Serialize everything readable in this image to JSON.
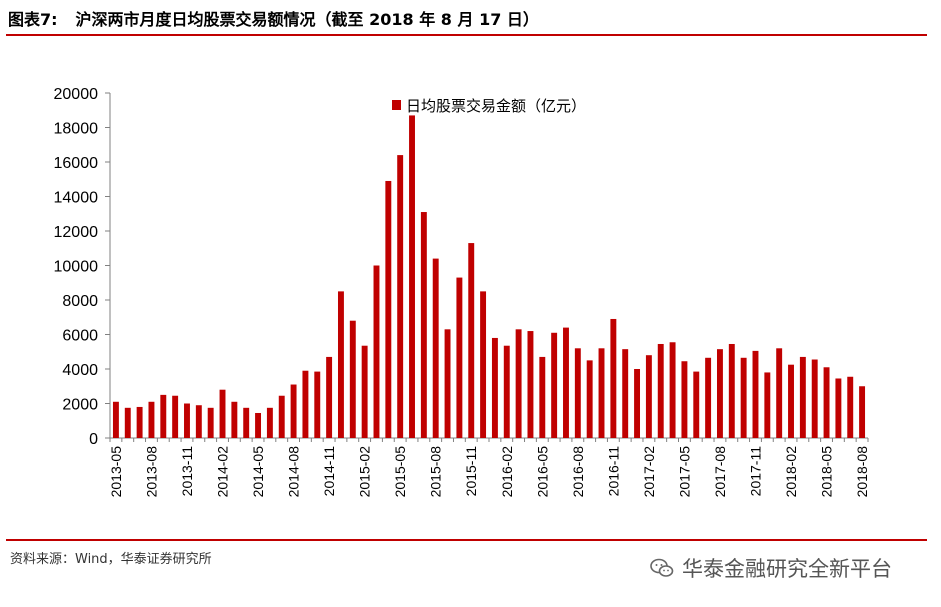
{
  "figure": {
    "label": "图表7:",
    "title": "沪深两市月度日均股票交易额情况（截至 2018 年 8 月 17 日）"
  },
  "source": "资料来源：Wind，华泰证券研究所",
  "watermark": "华泰金融研究全新平台",
  "colors": {
    "bar": "#c00000",
    "rule": "#c00000"
  },
  "icons": {
    "watermark_logo": "wechat-icon"
  },
  "chart_data": {
    "type": "bar",
    "title": "",
    "xlabel": "",
    "ylabel": "",
    "ylim": [
      0,
      20000
    ],
    "yticks": [
      0,
      2000,
      4000,
      6000,
      8000,
      10000,
      12000,
      14000,
      16000,
      18000,
      20000
    ],
    "legend": "top-center",
    "grid": false,
    "categories": [
      "2013-05",
      "2013-06",
      "2013-07",
      "2013-08",
      "2013-09",
      "2013-10",
      "2013-11",
      "2013-12",
      "2014-01",
      "2014-02",
      "2014-03",
      "2014-04",
      "2014-05",
      "2014-06",
      "2014-07",
      "2014-08",
      "2014-09",
      "2014-10",
      "2014-11",
      "2014-12",
      "2015-01",
      "2015-02",
      "2015-03",
      "2015-04",
      "2015-05",
      "2015-06",
      "2015-07",
      "2015-08",
      "2015-09",
      "2015-10",
      "2015-11",
      "2015-12",
      "2016-01",
      "2016-02",
      "2016-03",
      "2016-04",
      "2016-05",
      "2016-06",
      "2016-07",
      "2016-08",
      "2016-09",
      "2016-10",
      "2016-11",
      "2016-12",
      "2017-01",
      "2017-02",
      "2017-03",
      "2017-04",
      "2017-05",
      "2017-06",
      "2017-07",
      "2017-08",
      "2017-09",
      "2017-10",
      "2017-11",
      "2017-12",
      "2018-01",
      "2018-02",
      "2018-03",
      "2018-04",
      "2018-05",
      "2018-06",
      "2018-07",
      "2018-08"
    ],
    "tick_labels": [
      "2013-05",
      "2013-08",
      "2013-11",
      "2014-02",
      "2014-05",
      "2014-08",
      "2014-11",
      "2015-02",
      "2015-05",
      "2015-08",
      "2015-11",
      "2016-02",
      "2016-05",
      "2016-08",
      "2016-11",
      "2017-02",
      "2017-05",
      "2017-08",
      "2017-11",
      "2018-02",
      "2018-05",
      "2018-08"
    ],
    "series": [
      {
        "name": "日均股票交易金额（亿元）",
        "values": [
          2100,
          1750,
          1800,
          2100,
          2500,
          2450,
          2000,
          1900,
          1750,
          2800,
          2100,
          1750,
          1450,
          1750,
          2450,
          3100,
          3900,
          3850,
          4700,
          8500,
          6800,
          5350,
          10000,
          14900,
          16400,
          18700,
          13100,
          10400,
          6300,
          9300,
          11300,
          8500,
          5800,
          5350,
          6300,
          6200,
          4700,
          6100,
          6400,
          5200,
          4500,
          5200,
          6900,
          5150,
          4000,
          4800,
          5450,
          5550,
          4450,
          3850,
          4650,
          5150,
          5450,
          4650,
          5050,
          3800,
          5200,
          4250,
          4700,
          4550,
          4100,
          3450,
          3550,
          3000
        ]
      }
    ]
  }
}
